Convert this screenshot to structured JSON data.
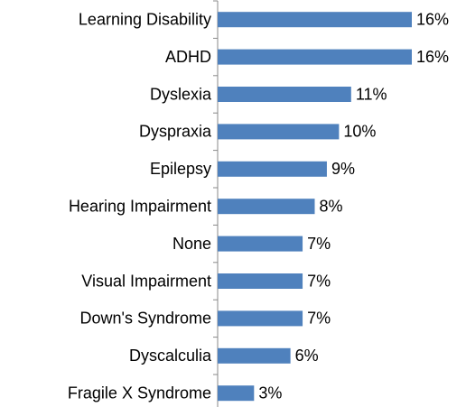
{
  "chart_data": {
    "type": "bar",
    "orientation": "horizontal",
    "categories": [
      "Learning Disability",
      "ADHD",
      "Dyslexia",
      "Dyspraxia",
      "Epilepsy",
      "Hearing Impairment",
      "None",
      "Visual Impairment",
      "Down's Syndrome",
      "Dyscalculia",
      "Fragile X Syndrome"
    ],
    "values": [
      16,
      16,
      11,
      10,
      9,
      8,
      7,
      7,
      7,
      6,
      3
    ],
    "value_labels": [
      "16%",
      "16%",
      "11%",
      "10%",
      "9%",
      "8%",
      "7%",
      "7%",
      "7%",
      "6%",
      "3%"
    ],
    "color": "#4f81bd"
  }
}
